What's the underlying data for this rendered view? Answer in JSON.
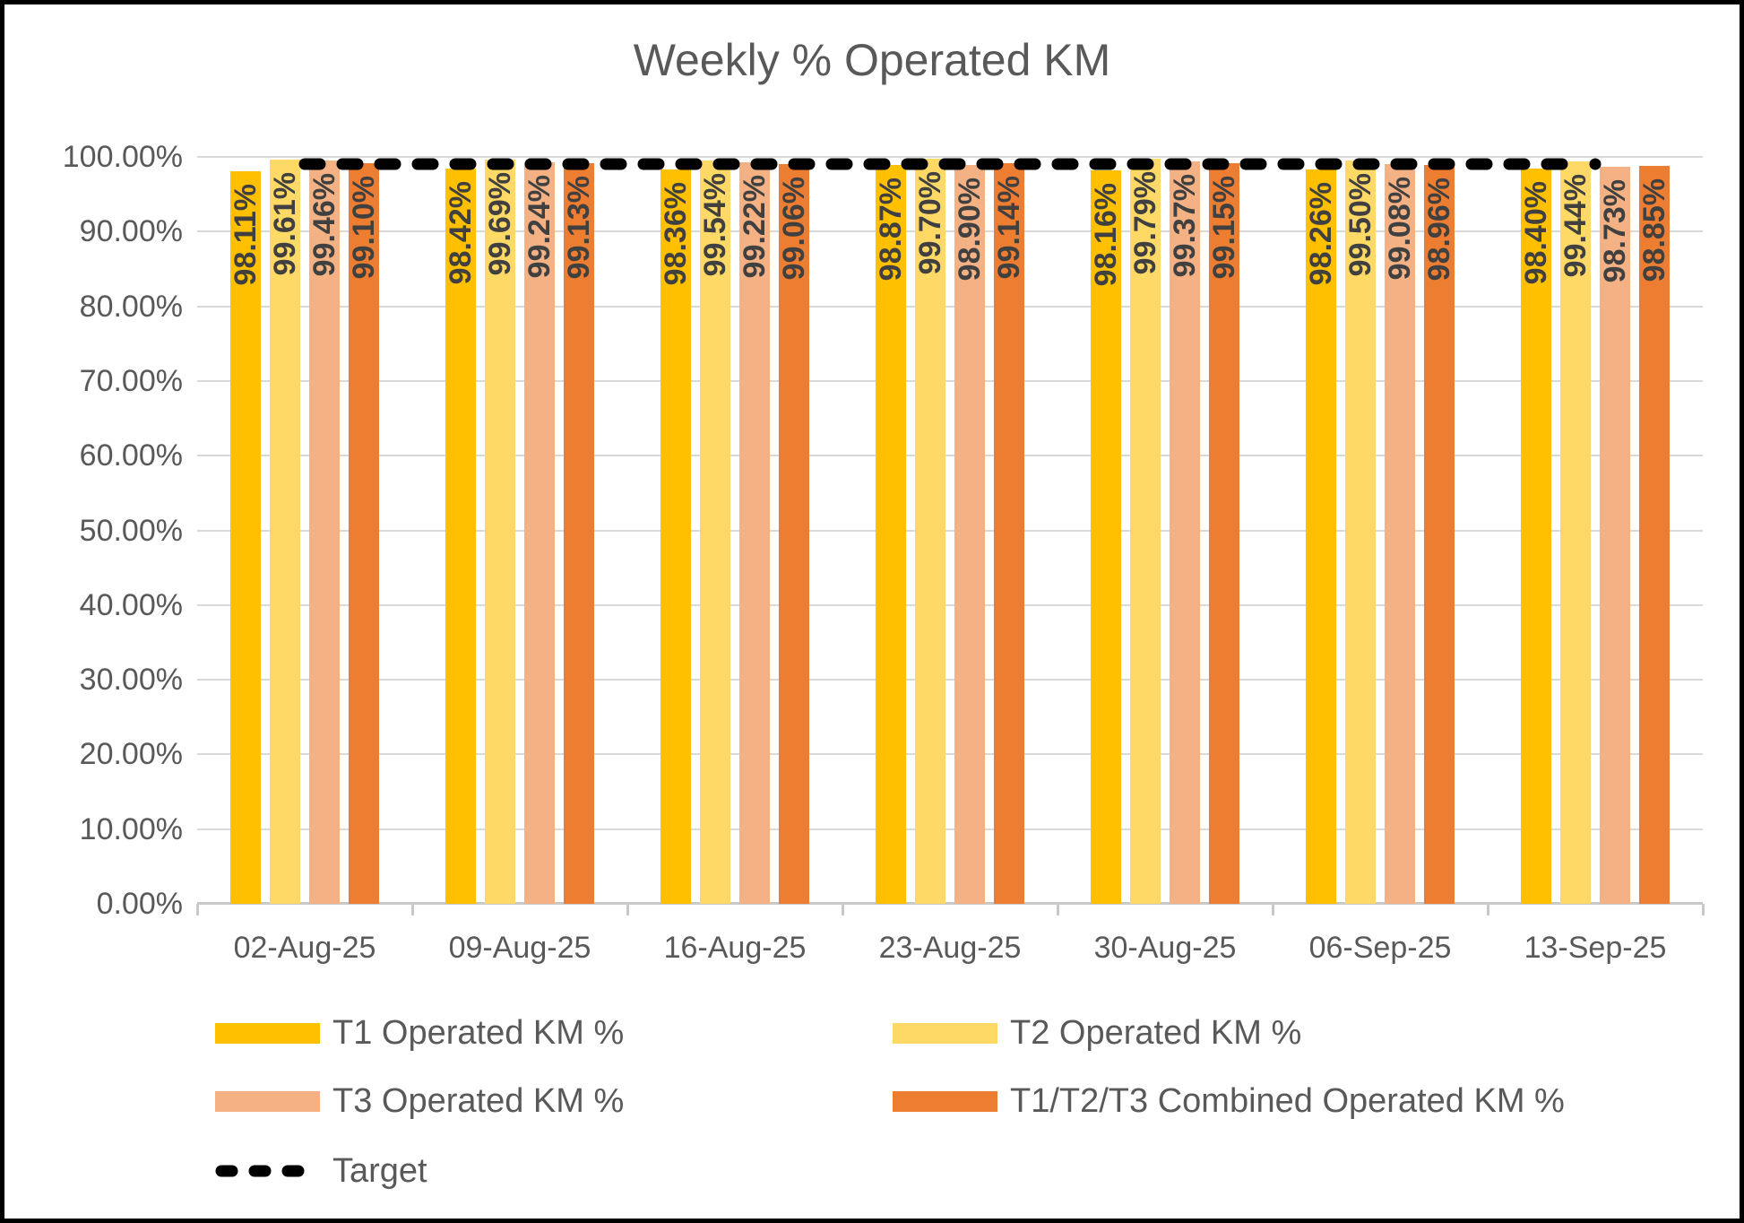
{
  "chart_data": {
    "type": "bar",
    "title": "Weekly % Operated KM",
    "categories": [
      "02-Aug-25",
      "09-Aug-25",
      "16-Aug-25",
      "23-Aug-25",
      "30-Aug-25",
      "06-Sep-25",
      "13-Sep-25"
    ],
    "series": [
      {
        "name": "T1 Operated KM %",
        "color": "#FFC000",
        "values": [
          98.11,
          98.42,
          98.36,
          98.87,
          98.16,
          98.26,
          98.4
        ]
      },
      {
        "name": "T2 Operated KM %",
        "color": "#FFD966",
        "values": [
          99.61,
          99.69,
          99.54,
          99.7,
          99.79,
          99.5,
          99.44
        ]
      },
      {
        "name": "T3 Operated KM %",
        "color": "#F4B183",
        "values": [
          99.46,
          99.24,
          99.22,
          98.9,
          99.37,
          99.08,
          98.73
        ]
      },
      {
        "name": "T1/T2/T3 Combined Operated KM %",
        "color": "#ED7D31",
        "values": [
          99.1,
          99.13,
          99.06,
          99.14,
          99.15,
          98.96,
          98.85
        ]
      }
    ],
    "target_line": {
      "label": "Target",
      "value": 99,
      "color": "#000000",
      "style": "dashed"
    },
    "y_axis": {
      "ticks": [
        "100.00%",
        "90.00%",
        "80.00%",
        "70.00%",
        "60.00%",
        "50.00%",
        "40.00%",
        "30.00%",
        "20.00%",
        "10.00%",
        "0.00%"
      ],
      "min": 0,
      "max": 100,
      "grid": true
    },
    "data_labels": {
      "format": "0.00%",
      "rotation": -90,
      "position": "inside-end"
    },
    "legend_position": "bottom",
    "colors": {
      "gridline": "#D9D9D9",
      "axis": "#C9C9C9",
      "axis_text": "#595959",
      "data_label_text": "#404040",
      "title_text": "#595959"
    }
  }
}
